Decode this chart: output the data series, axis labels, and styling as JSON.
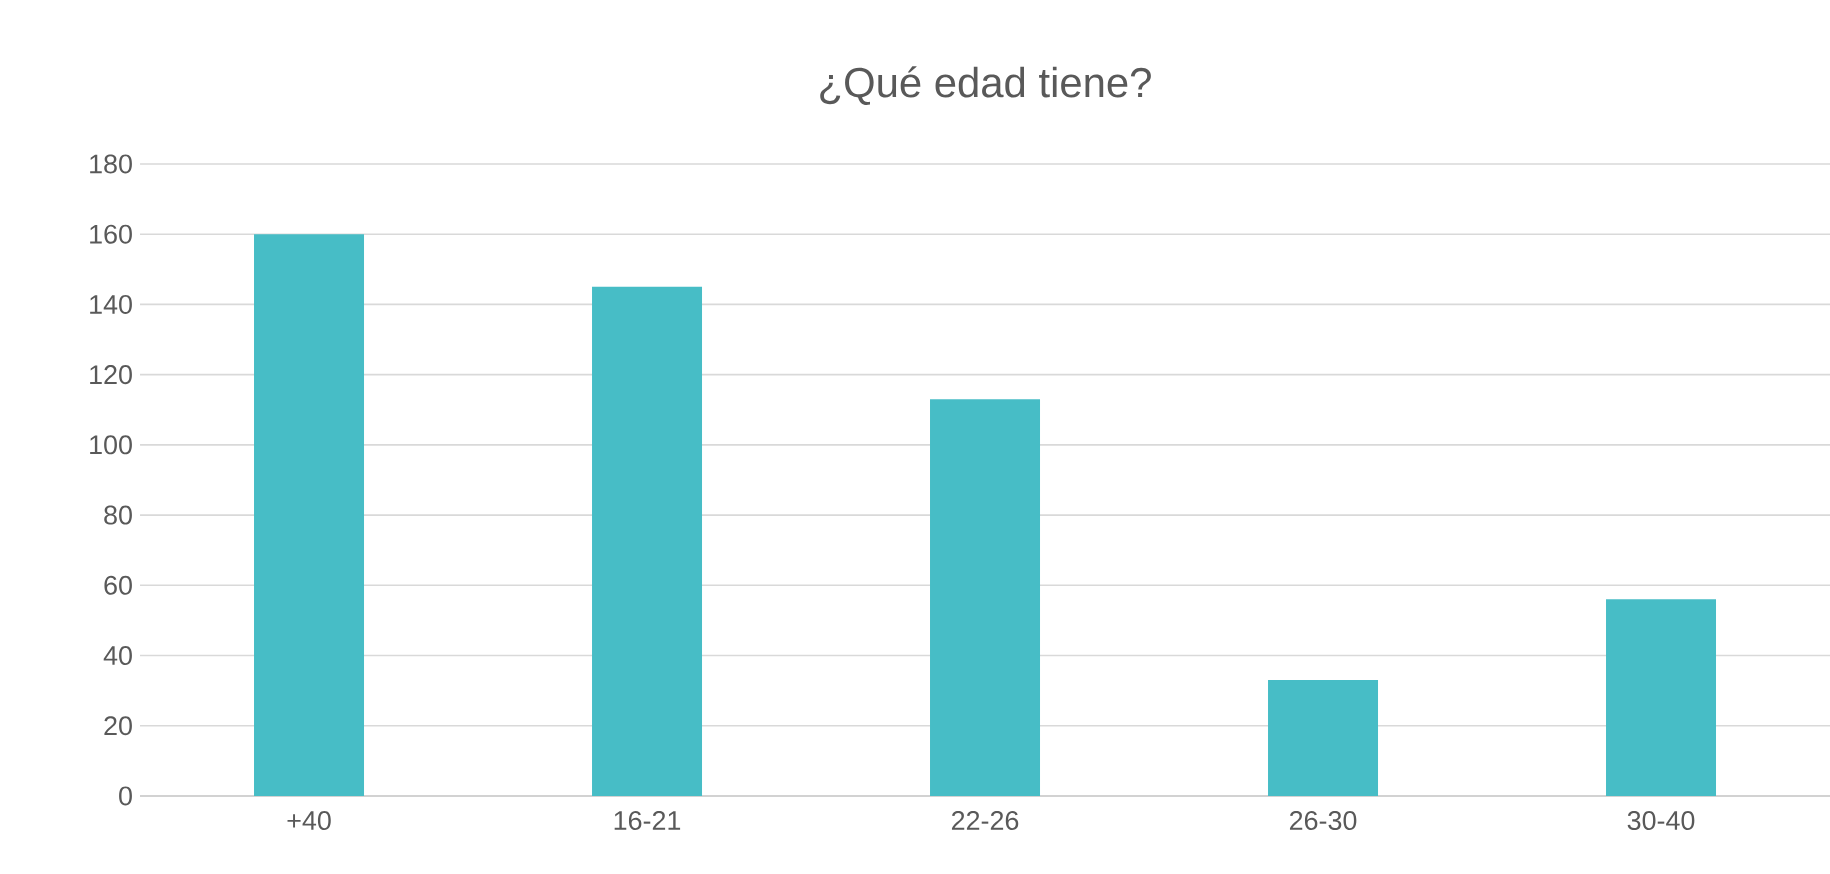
{
  "chart_data": {
    "type": "bar",
    "title": "¿Qué edad tiene?",
    "categories": [
      "+40",
      "16-21",
      "22-26",
      "26-30",
      "30-40"
    ],
    "values": [
      160,
      145,
      113,
      33,
      56
    ],
    "color": "#47bdc6",
    "ylim": [
      0,
      180
    ],
    "yticks": [
      0,
      20,
      40,
      60,
      80,
      100,
      120,
      140,
      160,
      180
    ],
    "grid": "y"
  }
}
